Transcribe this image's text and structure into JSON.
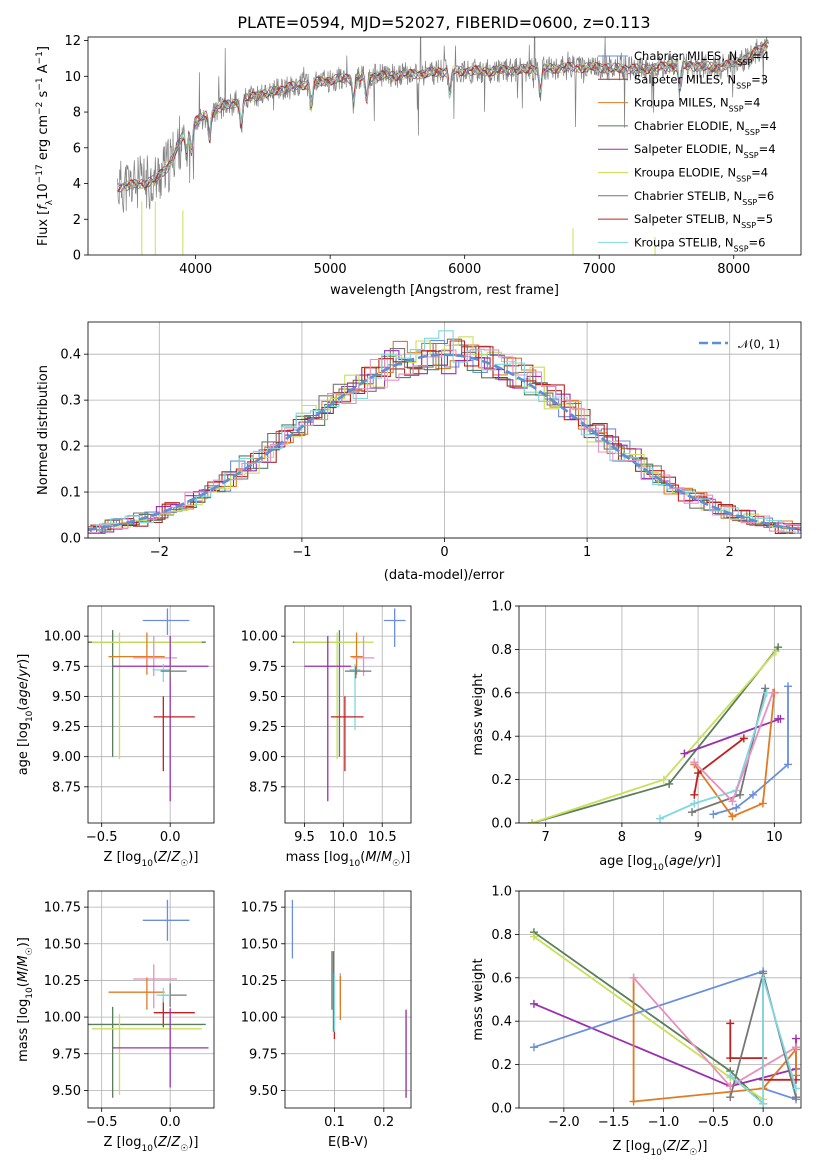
{
  "title": "PLATE=0594, MJD=52027, FIBERID=0600, z=0.113",
  "colors": {
    "Chabrier MILES": "#6a8fdc",
    "Salpeter MILES": "#a52a2a",
    "Kroupa MILES": "#e07b25",
    "Chabrier ELODIE": "#5a7d5a",
    "Salpeter ELODIE": "#9a30b0",
    "Kroupa ELODIE": "#c8e05a",
    "Chabrier STELIB": "#777777",
    "Salpeter STELIB": "#c02020",
    "Kroupa STELIB": "#7fd8e0",
    "pink": "#e890c0",
    "normal": "#5b8fd6"
  },
  "chart_data": [
    {
      "id": "spectrum",
      "type": "line",
      "title": "PLATE=0594, MJD=52027, FIBERID=0600, z=0.113",
      "xlabel": "wavelength [Angstrom, rest frame]",
      "ylabel": "Flux [f_λ 10^-17 erg cm^-2 s^-1 A^-1]",
      "xlim": [
        3200,
        8500
      ],
      "ylim": [
        0,
        12.2
      ],
      "xticks": [
        4000,
        5000,
        6000,
        7000,
        8000
      ],
      "yticks": [
        0,
        2,
        4,
        6,
        8,
        10,
        12
      ],
      "grid": false,
      "legend_position": "upper right",
      "continuum": [
        [
          3420,
          3.8
        ],
        [
          3600,
          4.0
        ],
        [
          3700,
          4.2
        ],
        [
          3800,
          5.0
        ],
        [
          3900,
          6.6
        ],
        [
          4000,
          7.5
        ],
        [
          4200,
          8.3
        ],
        [
          4400,
          8.8
        ],
        [
          4700,
          9.4
        ],
        [
          5000,
          9.8
        ],
        [
          5300,
          10.0
        ],
        [
          5600,
          10.1
        ],
        [
          5900,
          10.3
        ],
        [
          6200,
          10.3
        ],
        [
          6500,
          10.4
        ],
        [
          6800,
          10.5
        ],
        [
          7000,
          10.5
        ],
        [
          7300,
          10.4
        ],
        [
          7600,
          10.6
        ],
        [
          7900,
          10.5
        ],
        [
          8100,
          11.0
        ],
        [
          8260,
          11.9
        ]
      ],
      "series": [
        {
          "name": "Chabrier MILES",
          "label": "Chabrier MILES, N",
          "sub": "SSP",
          "n": "=4"
        },
        {
          "name": "Salpeter MILES",
          "label": "Salpeter MILES, N",
          "sub": "SSP",
          "n": "=3"
        },
        {
          "name": "Kroupa MILES",
          "label": "Kroupa MILES, N",
          "sub": "SSP",
          "n": "=4"
        },
        {
          "name": "Chabrier ELODIE",
          "label": "Chabrier ELODIE, N",
          "sub": "SSP",
          "n": "=4"
        },
        {
          "name": "Salpeter ELODIE",
          "label": "Salpeter ELODIE, N",
          "sub": "SSP",
          "n": "=4"
        },
        {
          "name": "Kroupa ELODIE",
          "label": "Kroupa ELODIE, N",
          "sub": "SSP",
          "n": "=4"
        },
        {
          "name": "Chabrier STELIB",
          "label": "Chabrier STELIB, N",
          "sub": "SSP",
          "n": "=6"
        },
        {
          "name": "Salpeter STELIB",
          "label": "Salpeter STELIB, N",
          "sub": "SSP",
          "n": "=5"
        },
        {
          "name": "Kroupa STELIB",
          "label": "Kroupa STELIB, N",
          "sub": "SSP",
          "n": "=6"
        }
      ]
    },
    {
      "id": "residuals",
      "type": "histogram",
      "xlabel": "(data-model)/error",
      "ylabel": "Normed distribution",
      "xlim": [
        -2.5,
        2.5
      ],
      "ylim": [
        0,
        0.47
      ],
      "xticks": [
        -2,
        -1,
        0,
        1,
        2
      ],
      "yticks": [
        0.0,
        0.1,
        0.2,
        0.3,
        0.4
      ],
      "grid": true,
      "bin_width": 0.1,
      "reference_curve": "N(0,1)",
      "legend": "𝒩(0, 1)",
      "legend_position": "upper right"
    },
    {
      "id": "age_vs_Z",
      "type": "scatter",
      "xlabel": "Z [log10(Z/Z☉)]",
      "ylabel": "age  [log10(age/yr)]",
      "xlim": [
        -0.6,
        0.32
      ],
      "ylim": [
        8.45,
        10.25
      ],
      "xticks": [
        -0.5,
        0.0
      ],
      "yticks": [
        8.75,
        9.0,
        9.25,
        9.5,
        9.75,
        10.0
      ],
      "grid": true,
      "points": [
        {
          "c": "Chabrier MILES",
          "x": -0.02,
          "y": 10.13,
          "xe": [
            0.18,
            0.16
          ],
          "ye": [
            0.12,
            0.1
          ]
        },
        {
          "c": "Chabrier ELODIE",
          "x": -0.42,
          "y": 9.95,
          "xe": [
            0.18,
            0.68
          ],
          "ye": [
            0.95,
            0.1
          ]
        },
        {
          "c": "Kroupa ELODIE",
          "x": -0.37,
          "y": 9.95,
          "xe": [
            0.2,
            0.6
          ],
          "ye": [
            0.97,
            0.08
          ]
        },
        {
          "c": "Kroupa MILES",
          "x": -0.17,
          "y": 9.83,
          "xe": [
            0.28,
            0.13
          ],
          "ye": [
            0.15,
            0.2
          ]
        },
        {
          "c": "pink",
          "x": -0.12,
          "y": 9.82,
          "xe": [
            0.15,
            0.17
          ],
          "ye": [
            0.15,
            0.18
          ]
        },
        {
          "c": "Salpeter ELODIE",
          "x": 0.0,
          "y": 9.75,
          "xe": [
            0.42,
            0.28
          ],
          "ye": [
            1.12,
            0.25
          ]
        },
        {
          "c": "Kroupa STELIB",
          "x": -0.05,
          "y": 9.72,
          "xe": [
            0.08,
            0.05
          ],
          "ye": [
            0.1,
            0.05
          ]
        },
        {
          "c": "Chabrier STELIB",
          "x": 0.0,
          "y": 9.71,
          "xe": [
            0.07,
            0.12
          ],
          "ye": [
            0.06,
            0.04
          ]
        },
        {
          "c": "Salpeter STELIB",
          "x": -0.05,
          "y": 9.33,
          "xe": [
            0.07,
            0.23
          ],
          "ye": [
            0.45,
            0.17
          ]
        }
      ]
    },
    {
      "id": "age_vs_mass",
      "type": "scatter",
      "xlabel": "mass [log10(M/M☉)]",
      "ylabel": "",
      "xlim": [
        9.25,
        10.87
      ],
      "ylim": [
        8.45,
        10.25
      ],
      "xticks": [
        9.5,
        10.0,
        10.5
      ],
      "yticks": [
        8.75,
        9.0,
        9.25,
        9.5,
        9.75,
        10.0
      ],
      "grid": true,
      "points": [
        {
          "c": "Chabrier MILES",
          "x": 10.66,
          "y": 10.13,
          "xe": [
            0.14,
            0.14
          ],
          "ye": [
            0.22,
            0.1
          ]
        },
        {
          "c": "Chabrier ELODIE",
          "x": 9.95,
          "y": 9.95,
          "xe": [
            0.6,
            0.27
          ],
          "ye": [
            0.95,
            0.1
          ]
        },
        {
          "c": "Kroupa ELODIE",
          "x": 9.92,
          "y": 9.95,
          "xe": [
            0.55,
            0.47
          ],
          "ye": [
            0.97,
            0.08
          ]
        },
        {
          "c": "Kroupa MILES",
          "x": 10.17,
          "y": 9.83,
          "xe": [
            0.08,
            0.08
          ],
          "ye": [
            0.15,
            0.2
          ]
        },
        {
          "c": "pink",
          "x": 10.26,
          "y": 9.82,
          "xe": [
            0.14,
            0.14
          ],
          "ye": [
            0.15,
            0.18
          ]
        },
        {
          "c": "Salpeter ELODIE",
          "x": 9.8,
          "y": 9.75,
          "xe": [
            0.3,
            0.3
          ],
          "ye": [
            1.12,
            0.25
          ]
        },
        {
          "c": "Kroupa STELIB",
          "x": 10.15,
          "y": 9.72,
          "xe": [
            0.07,
            0.07
          ],
          "ye": [
            0.5,
            0.05
          ]
        },
        {
          "c": "Chabrier STELIB",
          "x": 10.16,
          "y": 9.71,
          "xe": [
            0.14,
            0.2
          ],
          "ye": [
            0.06,
            0.04
          ]
        },
        {
          "c": "Salpeter STELIB",
          "x": 10.02,
          "y": 9.33,
          "xe": [
            0.18,
            0.24
          ],
          "ye": [
            0.45,
            0.17
          ]
        }
      ]
    },
    {
      "id": "mass_weight_vs_age",
      "type": "line",
      "xlabel": "age  [log10(age/yr)]",
      "ylabel": "mass weight",
      "xlim": [
        6.65,
        10.35
      ],
      "ylim": [
        0,
        1
      ],
      "xticks": [
        7,
        8,
        9,
        10
      ],
      "yticks": [
        0.0,
        0.2,
        0.4,
        0.6,
        0.8,
        1.0
      ],
      "grid": true,
      "series": [
        {
          "c": "Chabrier ELODIE",
          "x": [
            6.82,
            8.62,
            10.05
          ],
          "y": [
            0.0,
            0.18,
            0.81
          ]
        },
        {
          "c": "Kroupa ELODIE",
          "x": [
            6.82,
            8.55,
            10.02
          ],
          "y": [
            0.0,
            0.2,
            0.79
          ]
        },
        {
          "c": "Salpeter ELODIE",
          "x": [
            8.82,
            10.08,
            10.05
          ],
          "y": [
            0.32,
            0.48,
            0.48
          ]
        },
        {
          "c": "Chabrier MILES",
          "x": [
            9.2,
            9.5,
            9.72,
            10.18,
            10.18
          ],
          "y": [
            0.04,
            0.07,
            0.13,
            0.27,
            0.63
          ]
        },
        {
          "c": "Kroupa MILES",
          "x": [
            8.95,
            9.45,
            9.85,
            10.0,
            10.0
          ],
          "y": [
            0.27,
            0.03,
            0.09,
            0.6,
            0.6
          ]
        },
        {
          "c": "Salpeter STELIB",
          "x": [
            8.95,
            9.0,
            9.6
          ],
          "y": [
            0.13,
            0.23,
            0.39
          ]
        },
        {
          "c": "Chabrier STELIB",
          "x": [
            8.92,
            9.55,
            9.88
          ],
          "y": [
            0.05,
            0.13,
            0.62
          ]
        },
        {
          "c": "Kroupa STELIB",
          "x": [
            8.5,
            8.95,
            9.5,
            9.9
          ],
          "y": [
            0.02,
            0.09,
            0.15,
            0.6
          ]
        },
        {
          "c": "pink",
          "x": [
            8.95,
            9.45,
            9.98
          ],
          "y": [
            0.28,
            0.1,
            0.6
          ]
        }
      ]
    },
    {
      "id": "mass_vs_Z",
      "type": "scatter",
      "xlabel": "Z [log10(Z/Z☉)]",
      "ylabel": "mass [log10(M/M☉)]",
      "xlim": [
        -0.6,
        0.32
      ],
      "ylim": [
        9.38,
        10.86
      ],
      "xticks": [
        -0.5,
        0.0
      ],
      "yticks": [
        9.5,
        9.75,
        10.0,
        10.25,
        10.5,
        10.75
      ],
      "grid": true,
      "points": [
        {
          "c": "Chabrier MILES",
          "x": -0.02,
          "y": 10.66,
          "xe": [
            0.18,
            0.16
          ],
          "ye": [
            0.14,
            0.14
          ]
        },
        {
          "c": "pink",
          "x": -0.12,
          "y": 10.26,
          "xe": [
            0.15,
            0.17
          ],
          "ye": [
            0.2,
            0.1
          ]
        },
        {
          "c": "Kroupa MILES",
          "x": -0.17,
          "y": 10.17,
          "xe": [
            0.28,
            0.13
          ],
          "ye": [
            0.12,
            0.1
          ]
        },
        {
          "c": "Chabrier STELIB",
          "x": 0.0,
          "y": 10.15,
          "xe": [
            0.07,
            0.12
          ],
          "ye": [
            0.08,
            0.08
          ]
        },
        {
          "c": "Salpeter STELIB",
          "x": -0.05,
          "y": 10.03,
          "xe": [
            0.07,
            0.23
          ],
          "ye": [
            0.1,
            0.1
          ]
        },
        {
          "c": "Chabrier ELODIE",
          "x": -0.42,
          "y": 9.95,
          "xe": [
            0.18,
            0.68
          ],
          "ye": [
            0.5,
            0.12
          ]
        },
        {
          "c": "Kroupa ELODIE",
          "x": -0.37,
          "y": 9.92,
          "xe": [
            0.2,
            0.6
          ],
          "ye": [
            0.45,
            0.1
          ]
        },
        {
          "c": "Salpeter ELODIE",
          "x": 0.0,
          "y": 9.79,
          "xe": [
            0.42,
            0.28
          ],
          "ye": [
            0.27,
            0.27
          ]
        },
        {
          "c": "Kroupa STELIB",
          "x": -0.05,
          "y": 10.15,
          "xe": [
            0.05,
            0.05
          ],
          "ye": [
            0.05,
            0.05
          ]
        }
      ]
    },
    {
      "id": "mass_vs_ebv",
      "type": "scatter",
      "xlabel": "E(B-V)",
      "ylabel": "",
      "xlim": [
        0.0,
        0.255
      ],
      "ylim": [
        9.38,
        10.86
      ],
      "xticks": [
        0.1,
        0.2
      ],
      "yticks": [
        9.5,
        9.75,
        10.0,
        10.25,
        10.5,
        10.75
      ],
      "grid": true,
      "points": [
        {
          "c": "Chabrier MILES",
          "x": 0.015,
          "y": 10.6,
          "xe": [
            0,
            0
          ],
          "ye": [
            0.2,
            0.2
          ]
        },
        {
          "c": "pink",
          "x": 0.112,
          "y": 10.2,
          "xe": [
            0,
            0
          ],
          "ye": [
            0.12,
            0.1
          ]
        },
        {
          "c": "Kroupa MILES",
          "x": 0.112,
          "y": 10.18,
          "xe": [
            0,
            0
          ],
          "ye": [
            0.2,
            0.1
          ]
        },
        {
          "c": "Chabrier STELIB",
          "x": 0.095,
          "y": 10.2,
          "xe": [
            0,
            0
          ],
          "ye": [
            0.15,
            0.25
          ]
        },
        {
          "c": "Chabrier ELODIE",
          "x": 0.098,
          "y": 10.2,
          "xe": [
            0,
            0
          ],
          "ye": [
            0.3,
            0.25
          ]
        },
        {
          "c": "Salpeter STELIB",
          "x": 0.1,
          "y": 9.95,
          "xe": [
            0,
            0
          ],
          "ye": [
            0.1,
            0.1
          ]
        },
        {
          "c": "Kroupa STELIB",
          "x": 0.1,
          "y": 10.1,
          "xe": [
            0,
            0
          ],
          "ye": [
            0.2,
            0.2
          ]
        },
        {
          "c": "Kroupa ELODIE",
          "x": 0.245,
          "y": 9.75,
          "xe": [
            0,
            0
          ],
          "ye": [
            0.3,
            0.3
          ]
        },
        {
          "c": "Salpeter ELODIE",
          "x": 0.245,
          "y": 9.75,
          "xe": [
            0,
            0
          ],
          "ye": [
            0.3,
            0.3
          ]
        }
      ]
    },
    {
      "id": "mass_weight_vs_Z",
      "type": "line",
      "xlabel": "Z [log10(Z/Z☉)]",
      "ylabel": "mass weight",
      "xlim": [
        -2.45,
        0.38
      ],
      "ylim": [
        0,
        1
      ],
      "xticks": [
        -2.0,
        -1.5,
        -1.0,
        -0.5,
        0.0
      ],
      "yticks": [
        0.0,
        0.2,
        0.4,
        0.6,
        0.8,
        1.0
      ],
      "grid": true,
      "series": [
        {
          "c": "Chabrier ELODIE",
          "x": [
            -2.3,
            -0.33,
            0.0
          ],
          "y": [
            0.81,
            0.17,
            0.02
          ]
        },
        {
          "c": "Kroupa ELODIE",
          "x": [
            -2.3,
            -0.33,
            0.0
          ],
          "y": [
            0.79,
            0.14,
            0.04
          ]
        },
        {
          "c": "Salpeter ELODIE",
          "x": [
            -2.3,
            -0.33,
            0.33,
            0.33
          ],
          "y": [
            0.48,
            0.1,
            0.18,
            0.32
          ]
        },
        {
          "c": "Chabrier MILES",
          "x": [
            -2.3,
            0.0,
            0.0,
            0.33
          ],
          "y": [
            0.28,
            0.63,
            0.09,
            0.04
          ]
        },
        {
          "c": "Kroupa MILES",
          "x": [
            -1.3,
            -1.3,
            0.0,
            0.33,
            0.33
          ],
          "y": [
            0.6,
            0.03,
            0.09,
            0.27,
            0.15
          ]
        },
        {
          "c": "pink",
          "x": [
            -1.3,
            -0.33,
            0.33
          ],
          "y": [
            0.6,
            0.1,
            0.28
          ]
        },
        {
          "c": "Salpeter STELIB",
          "x": [
            -0.33,
            -0.33,
            0.0,
            0.0,
            0.33
          ],
          "y": [
            0.39,
            0.23,
            0.23,
            0.13,
            0.13
          ]
        },
        {
          "c": "Chabrier STELIB",
          "x": [
            -0.33,
            0.0,
            0.33
          ],
          "y": [
            0.05,
            0.62,
            0.05
          ]
        },
        {
          "c": "Kroupa STELIB",
          "x": [
            -0.33,
            0.0,
            0.0,
            0.33
          ],
          "y": [
            0.15,
            0.02,
            0.6,
            0.09
          ]
        }
      ]
    }
  ]
}
